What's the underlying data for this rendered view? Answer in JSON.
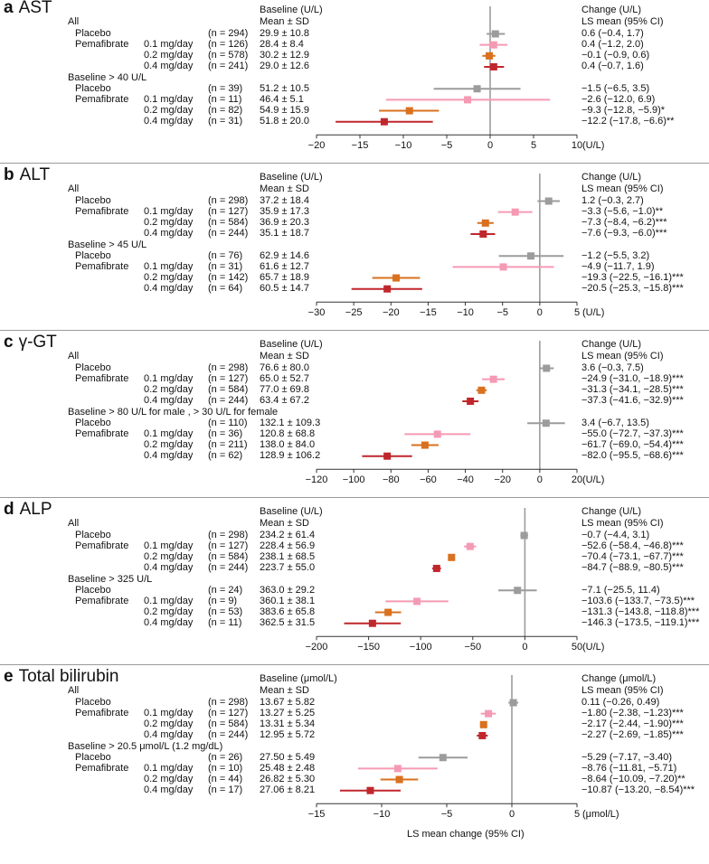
{
  "x_axis_caption": "LS mean change (95% CI)",
  "colors": {
    "placebo": "#9c9c9c",
    "p01": "#f59ab4",
    "p02": "#d9711f",
    "p04": "#c0272d",
    "ref_line": "#9c9c9c"
  },
  "chart_data": [
    {
      "type": "forest",
      "letter": "a",
      "title": "AST",
      "baseline_header": "Baseline (U/L)",
      "baseline_subheader": "Mean ± SD",
      "change_header": "Change (U/L)",
      "change_subheader": "LS mean (95% CI)",
      "xlim": [
        -20,
        10
      ],
      "ticks": [
        -20,
        -15,
        -10,
        -5,
        0,
        5,
        10
      ],
      "unit_label": "(U/L)",
      "groups": [
        {
          "label": "All",
          "rows": [
            {
              "arm": "Placebo",
              "dose": "",
              "n": "(n = 294)",
              "baseline": "29.9 ± 10.8",
              "change": "0.6 (−0.4, 1.7)",
              "est": 0.6,
              "lo": -0.4,
              "hi": 1.7,
              "color": "placebo"
            },
            {
              "arm": "Pemafibrate",
              "dose": "0.1 mg/day",
              "n": "(n = 126)",
              "baseline": "28.4 ± 8.4",
              "change": "0.4 (−1.2, 2.0)",
              "est": 0.4,
              "lo": -1.2,
              "hi": 2.0,
              "color": "p01"
            },
            {
              "arm": "",
              "dose": "0.2 mg/day",
              "n": "(n = 578)",
              "baseline": "30.2 ± 12.9",
              "change": "−0.1 (−0.9, 0.6)",
              "est": -0.1,
              "lo": -0.9,
              "hi": 0.6,
              "color": "p02"
            },
            {
              "arm": "",
              "dose": "0.4 mg/day",
              "n": "(n = 241)",
              "baseline": "29.0 ± 12.6",
              "change": "0.4 (−0.7, 1.6)",
              "est": 0.4,
              "lo": -0.7,
              "hi": 1.6,
              "color": "p04"
            }
          ]
        },
        {
          "label": "Baseline > 40 U/L",
          "rows": [
            {
              "arm": "Placebo",
              "dose": "",
              "n": "(n = 39)",
              "baseline": "51.2 ± 10.5",
              "change": "−1.5 (−6.5, 3.5)",
              "est": -1.5,
              "lo": -6.5,
              "hi": 3.5,
              "color": "placebo"
            },
            {
              "arm": "Pemafibrate",
              "dose": "0.1 mg/day",
              "n": "(n = 11)",
              "baseline": "46.4 ± 5.1",
              "change": "−2.6 (−12.0, 6.9)",
              "est": -2.6,
              "lo": -12.0,
              "hi": 6.9,
              "color": "p01"
            },
            {
              "arm": "",
              "dose": "0.2 mg/day",
              "n": "(n = 82)",
              "baseline": "54.9 ± 15.9",
              "change": "−9.3 (−12.8, −5.9)*",
              "est": -9.3,
              "lo": -12.8,
              "hi": -5.9,
              "color": "p02"
            },
            {
              "arm": "",
              "dose": "0.4 mg/day",
              "n": "(n = 31)",
              "baseline": "51.8 ± 20.0",
              "change": "−12.2 (−17.8, −6.6)**",
              "est": -12.2,
              "lo": -17.8,
              "hi": -6.6,
              "color": "p04"
            }
          ]
        }
      ]
    },
    {
      "type": "forest",
      "letter": "b",
      "title": "ALT",
      "baseline_header": "Baseline (U/L)",
      "baseline_subheader": "Mean ± SD",
      "change_header": "Change (U/L)",
      "change_subheader": "LS mean (95% CI)",
      "xlim": [
        -30,
        5
      ],
      "ticks": [
        -30,
        -25,
        -20,
        -15,
        -10,
        -5,
        0,
        5
      ],
      "unit_label": "(U/L)",
      "groups": [
        {
          "label": "All",
          "rows": [
            {
              "arm": "Placebo",
              "dose": "",
              "n": "(n = 298)",
              "baseline": "37.2 ± 18.4",
              "change": "1.2 (−0.3, 2.7)",
              "est": 1.2,
              "lo": -0.3,
              "hi": 2.7,
              "color": "placebo"
            },
            {
              "arm": "Pemafibrate",
              "dose": "0.1 mg/day",
              "n": "(n = 127)",
              "baseline": "35.9 ± 17.3",
              "change": "−3.3 (−5.6, −1.0)**",
              "est": -3.3,
              "lo": -5.6,
              "hi": -1.0,
              "color": "p01"
            },
            {
              "arm": "",
              "dose": "0.2 mg/day",
              "n": "(n = 584)",
              "baseline": "36.9 ± 20.3",
              "change": "−7.3 (−8.4, −6.2)***",
              "est": -7.3,
              "lo": -8.4,
              "hi": -6.2,
              "color": "p02"
            },
            {
              "arm": "",
              "dose": "0.4 mg/day",
              "n": "(n = 244)",
              "baseline": "35.1 ± 18.7",
              "change": "−7.6 (−9.3, −6.0)***",
              "est": -7.6,
              "lo": -9.3,
              "hi": -6.0,
              "color": "p04"
            }
          ]
        },
        {
          "label": "Baseline > 45 U/L",
          "rows": [
            {
              "arm": "Placebo",
              "dose": "",
              "n": "(n = 76)",
              "baseline": "62.9 ± 14.6",
              "change": "−1.2 (−5.5, 3.2)",
              "est": -1.2,
              "lo": -5.5,
              "hi": 3.2,
              "color": "placebo"
            },
            {
              "arm": "Pemafibrate",
              "dose": "0.1 mg/day",
              "n": "(n = 31)",
              "baseline": "61.6 ± 12.7",
              "change": "−4.9 (−11.7, 1.9)",
              "est": -4.9,
              "lo": -11.7,
              "hi": 1.9,
              "color": "p01"
            },
            {
              "arm": "",
              "dose": "0.2 mg/day",
              "n": "(n = 142)",
              "baseline": "65.7 ± 18.9",
              "change": "−19.3 (−22.5, −16.1)***",
              "est": -19.3,
              "lo": -22.5,
              "hi": -16.1,
              "color": "p02"
            },
            {
              "arm": "",
              "dose": "0.4 mg/day",
              "n": "(n = 64)",
              "baseline": "60.5 ± 14.7",
              "change": "−20.5 (−25.3, −15.8)***",
              "est": -20.5,
              "lo": -25.3,
              "hi": -15.8,
              "color": "p04"
            }
          ]
        }
      ]
    },
    {
      "type": "forest",
      "letter": "c",
      "title": "γ-GT",
      "baseline_header": "Baseline (U/L)",
      "baseline_subheader": "Mean ± SD",
      "change_header": "Change (U/L)",
      "change_subheader": "LS mean (95% CI)",
      "xlim": [
        -120,
        20
      ],
      "ticks": [
        -120,
        -100,
        -80,
        -60,
        -40,
        -20,
        0,
        20
      ],
      "unit_label": "(U/L)",
      "groups": [
        {
          "label": "All",
          "rows": [
            {
              "arm": "Placebo",
              "dose": "",
              "n": "(n = 298)",
              "baseline": "76.6 ± 80.0",
              "change": "3.6 (−0.3, 7.5)",
              "est": 3.6,
              "lo": -0.3,
              "hi": 7.5,
              "color": "placebo"
            },
            {
              "arm": "Pemafibrate",
              "dose": "0.1 mg/day",
              "n": "(n = 127)",
              "baseline": "65.0 ± 52.7",
              "change": "−24.9 (−31.0, −18.9)***",
              "est": -24.9,
              "lo": -31.0,
              "hi": -18.9,
              "color": "p01"
            },
            {
              "arm": "",
              "dose": "0.2 mg/day",
              "n": "(n = 584)",
              "baseline": "77.0 ± 69.8",
              "change": "−31.3 (−34.1, −28.5)***",
              "est": -31.3,
              "lo": -34.1,
              "hi": -28.5,
              "color": "p02"
            },
            {
              "arm": "",
              "dose": "0.4 mg/day",
              "n": "(n = 244)",
              "baseline": "63.4 ± 67.2",
              "change": "−37.3 (−41.6, −32.9)***",
              "est": -37.3,
              "lo": -41.6,
              "hi": -32.9,
              "color": "p04"
            }
          ]
        },
        {
          "label": "Baseline > 80 U/L for male , > 30 U/L for female",
          "rows": [
            {
              "arm": "Placebo",
              "dose": "",
              "n": "(n = 110)",
              "baseline": "132.1 ± 109.3",
              "change": "3.4 (−6.7, 13.5)",
              "est": 3.4,
              "lo": -6.7,
              "hi": 13.5,
              "color": "placebo"
            },
            {
              "arm": "Pemafibrate",
              "dose": "0.1 mg/day",
              "n": "(n = 36)",
              "baseline": "120.8 ± 68.8",
              "change": "−55.0 (−72.7, −37.3)***",
              "est": -55.0,
              "lo": -72.7,
              "hi": -37.3,
              "color": "p01"
            },
            {
              "arm": "",
              "dose": "0.2 mg/day",
              "n": "(n = 211)",
              "baseline": "138.0 ± 84.0",
              "change": "−61.7 (−69.0, −54.4)***",
              "est": -61.7,
              "lo": -69.0,
              "hi": -54.4,
              "color": "p02"
            },
            {
              "arm": "",
              "dose": "0.4 mg/day",
              "n": "(n = 62)",
              "baseline": "128.9 ± 106.2",
              "change": "−82.0 (−95.5, −68.6)***",
              "est": -82.0,
              "lo": -95.5,
              "hi": -68.6,
              "color": "p04"
            }
          ]
        }
      ]
    },
    {
      "type": "forest",
      "letter": "d",
      "title": "ALP",
      "baseline_header": "Baseline (U/L)",
      "baseline_subheader": "Mean ± SD",
      "change_header": "Change (U/L)",
      "change_subheader": "LS mean (95% CI)",
      "xlim": [
        -200,
        50
      ],
      "ticks": [
        -200,
        -150,
        -100,
        -50,
        0,
        50
      ],
      "unit_label": "(U/L)",
      "groups": [
        {
          "label": "All",
          "rows": [
            {
              "arm": "Placebo",
              "dose": "",
              "n": "(n = 298)",
              "baseline": "234.2 ± 61.4",
              "change": "−0.7 (−4.4, 3.1)",
              "est": -0.7,
              "lo": -4.4,
              "hi": 3.1,
              "color": "placebo"
            },
            {
              "arm": "Pemafibrate",
              "dose": "0.1 mg/day",
              "n": "(n = 127)",
              "baseline": "228.4 ± 56.9",
              "change": "−52.6 (−58.4, −46.8)***",
              "est": -52.6,
              "lo": -58.4,
              "hi": -46.8,
              "color": "p01"
            },
            {
              "arm": "",
              "dose": "0.2 mg/day",
              "n": "(n = 584)",
              "baseline": "238.1 ± 68.5",
              "change": "−70.4 (−73.1, −67.7)***",
              "est": -70.4,
              "lo": -73.1,
              "hi": -67.7,
              "color": "p02"
            },
            {
              "arm": "",
              "dose": "0.4 mg/day",
              "n": "(n = 244)",
              "baseline": "223.7 ± 55.0",
              "change": "−84.7 (−88.9, −80.5)***",
              "est": -84.7,
              "lo": -88.9,
              "hi": -80.5,
              "color": "p04"
            }
          ]
        },
        {
          "label": "Baseline > 325 U/L",
          "rows": [
            {
              "arm": "Placebo",
              "dose": "",
              "n": "(n = 24)",
              "baseline": "363.0 ± 29.2",
              "change": "−7.1 (−25.5, 11.4)",
              "est": -7.1,
              "lo": -25.5,
              "hi": 11.4,
              "color": "placebo"
            },
            {
              "arm": "Pemafibrate",
              "dose": "0.1 mg/day",
              "n": "(n = 9)",
              "baseline": "360.1 ± 38.1",
              "change": "−103.6 (−133.7, −73.5)***",
              "est": -103.6,
              "lo": -133.7,
              "hi": -73.5,
              "color": "p01"
            },
            {
              "arm": "",
              "dose": "0.2 mg/day",
              "n": "(n = 53)",
              "baseline": "383.6 ± 65.8",
              "change": "−131.3 (−143.8, −118.8)***",
              "est": -131.3,
              "lo": -143.8,
              "hi": -118.8,
              "color": "p02"
            },
            {
              "arm": "",
              "dose": "0.4 mg/day",
              "n": "(n = 11)",
              "baseline": "362.5 ± 31.5",
              "change": "−146.3 (−173.5, −119.1)***",
              "est": -146.3,
              "lo": -173.5,
              "hi": -119.1,
              "color": "p04"
            }
          ]
        }
      ]
    },
    {
      "type": "forest",
      "letter": "e",
      "title": "Total bilirubin",
      "baseline_header": "Baseline (μmol/L)",
      "baseline_subheader": "Mean ± SD",
      "change_header": "Change (μmol/L)",
      "change_subheader": "LS mean (95% CI)",
      "xlim": [
        -15,
        5
      ],
      "ticks": [
        -15,
        -10,
        -5,
        0,
        5
      ],
      "unit_label": "(μmol/L)",
      "groups": [
        {
          "label": "All",
          "rows": [
            {
              "arm": "Placebo",
              "dose": "",
              "n": "(n = 298)",
              "baseline": "13.67 ± 5.82",
              "change": "0.11 (−0.26, 0.49)",
              "est": 0.11,
              "lo": -0.26,
              "hi": 0.49,
              "color": "placebo"
            },
            {
              "arm": "Pemafibrate",
              "dose": "0.1 mg/day",
              "n": "(n = 127)",
              "baseline": "13.27 ± 5.25",
              "change": "−1.80 (−2.38, −1.23)***",
              "est": -1.8,
              "lo": -2.38,
              "hi": -1.23,
              "color": "p01"
            },
            {
              "arm": "",
              "dose": "0.2 mg/day",
              "n": "(n = 584)",
              "baseline": "13.31 ± 5.34",
              "change": "−2.17 (−2.44, −1.90)***",
              "est": -2.17,
              "lo": -2.44,
              "hi": -1.9,
              "color": "p02"
            },
            {
              "arm": "",
              "dose": "0.4 mg/day",
              "n": "(n = 244)",
              "baseline": "12.95 ± 5.72",
              "change": "−2.27 (−2.69, −1.85)***",
              "est": -2.27,
              "lo": -2.69,
              "hi": -1.85,
              "color": "p04"
            }
          ]
        },
        {
          "label": "Baseline > 20.5 μmol/L (1.2 mg/dL)",
          "rows": [
            {
              "arm": "Placebo",
              "dose": "",
              "n": "(n = 26)",
              "baseline": "27.50 ± 5.49",
              "change": "−5.29 (−7.17, −3.40)",
              "est": -5.29,
              "lo": -7.17,
              "hi": -3.4,
              "color": "placebo"
            },
            {
              "arm": "Pemafibrate",
              "dose": "0.1 mg/day",
              "n": "(n = 10)",
              "baseline": "25.48 ± 2.48",
              "change": "−8.76 (−11.81, −5.71)",
              "est": -8.76,
              "lo": -11.81,
              "hi": -5.71,
              "color": "p01"
            },
            {
              "arm": "",
              "dose": "0.2 mg/day",
              "n": "(n = 44)",
              "baseline": "26.82 ± 5.30",
              "change": "−8.64 (−10.09, −7.20)**",
              "est": -8.64,
              "lo": -10.09,
              "hi": -7.2,
              "color": "p02"
            },
            {
              "arm": "",
              "dose": "0.4 mg/day",
              "n": "(n = 17)",
              "baseline": "27.06 ± 8.21",
              "change": "−10.87 (−13.20, −8.54)***",
              "est": -10.87,
              "lo": -13.2,
              "hi": -8.54,
              "color": "p04"
            }
          ]
        }
      ]
    }
  ]
}
